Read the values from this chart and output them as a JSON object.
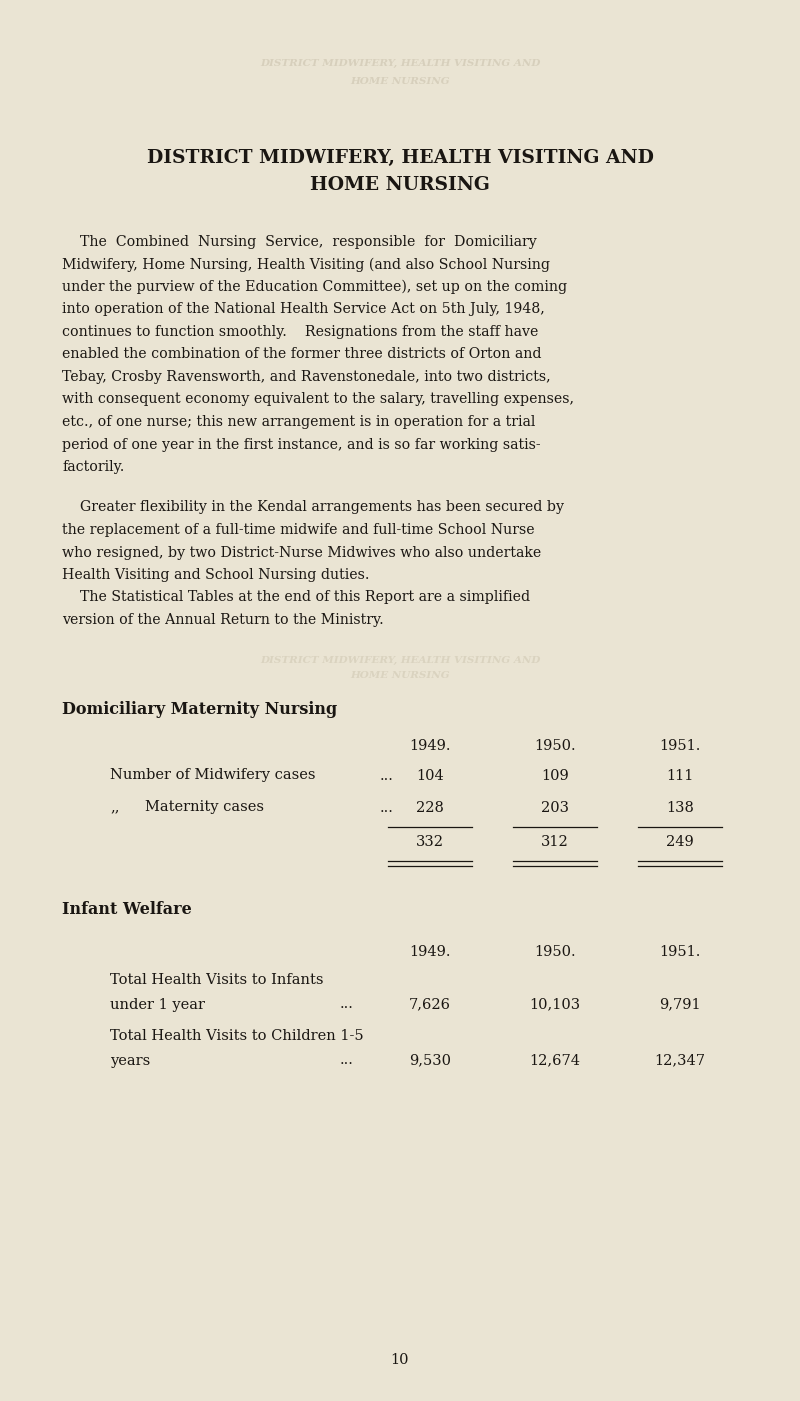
{
  "bg_color": "#EAE4D3",
  "text_color": "#1a1612",
  "title_line1": "DISTRICT MIDWIFERY, HEALTH VISITING AND",
  "title_line2": "HOME NURSING",
  "p1_lines": [
    "    The  Combined  Nursing  Service,  responsible  for  Domiciliary",
    "Midwifery, Home Nursing, Health Visiting (and also School Nursing",
    "under the purview of the Education Committee), set up on the coming",
    "into operation of the National Health Service Act on 5th July, 1948,",
    "continues to function smoothly.    Resignations from the staff have",
    "enabled the combination of the former three districts of Orton and",
    "Tebay, Crosby Ravensworth, and Ravenstonedale, into two districts,",
    "with consequent economy equivalent to the salary, travelling expenses,",
    "etc., of one nurse; this new arrangement is in operation for a trial",
    "period of one year in the first instance, and is so far working satis-",
    "factorily."
  ],
  "p2_lines": [
    "    Greater flexibility in the Kendal arrangements has been secured by",
    "the replacement of a full-time midwife and full-time School Nurse",
    "who resigned, by two District-Nurse Midwives who also undertake",
    "Health Visiting and School Nursing duties."
  ],
  "p3_lines": [
    "    The Statistical Tables at the end of this Report are a simplified",
    "version of the Annual Return to the Ministry."
  ],
  "section1_title": "Domiciliary Maternity Nursing",
  "years_header": [
    "1949.",
    "1950.",
    "1951."
  ],
  "row1_label": "Number of Midwifery cases",
  "row1_dots": "...",
  "row1_vals": [
    "104",
    "109",
    "111"
  ],
  "row2_prefix": ",,",
  "row2_label": "Maternity cases",
  "row2_dots": "...",
  "row2_vals": [
    "228",
    "203",
    "138"
  ],
  "total_vals": [
    "332",
    "312",
    "249"
  ],
  "section2_title": "Infant Welfare",
  "years_header2": [
    "1949.",
    "1950.",
    "1951."
  ],
  "iw_row1_label1": "Total Health Visits to Infants",
  "iw_row1_label2": "under 1 year",
  "iw_row1_dots": "...",
  "iw_row1_vals": [
    "7,626",
    "10,103",
    "9,791"
  ],
  "iw_row2_label1": "Total Health Visits to Children 1-5",
  "iw_row2_label2": "years",
  "iw_row2_dots": "...",
  "iw_row2_vals": [
    "9,530",
    "12,674",
    "12,347"
  ],
  "page_number": "10",
  "wm_line1": "DISTRICT MIDWIFERY, HEALTH VISITING AND",
  "wm_line2": "HOME NURSING",
  "wm2_line1": "DISTRICT MIDWIFERY, HEALTH VISITING AND",
  "wm2_line2": "HOME NURSING"
}
